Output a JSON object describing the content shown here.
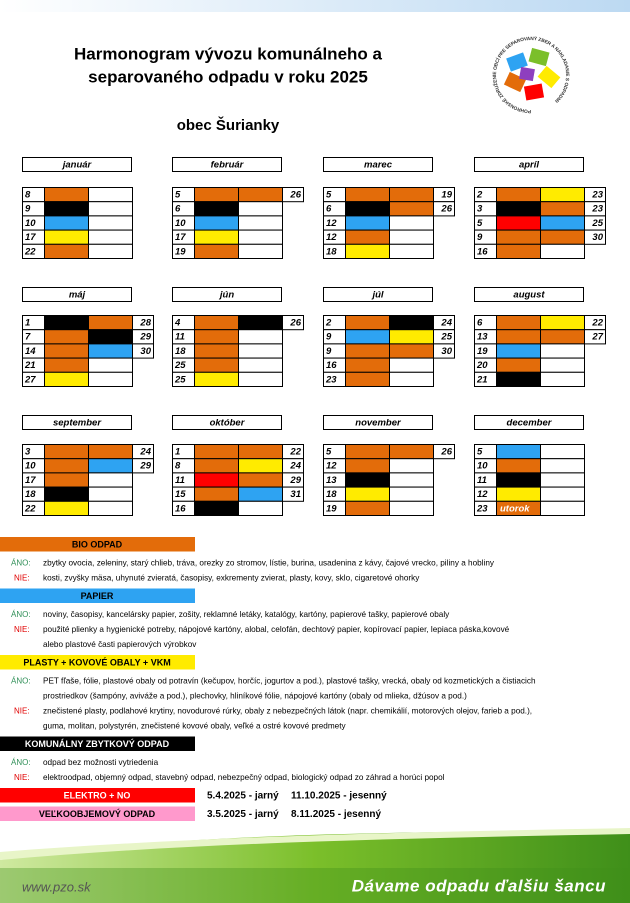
{
  "header": {
    "title_lines": [
      "Harmonogram vývozu komunálneho a",
      "separovaného odpadu v roku 2025"
    ],
    "subtitle": "obec Šurianky",
    "logo_text": "POHRONSKÉ ZDRUŽENIE OBCÍ PRE SEPAROVANÝ ZBER A NAKLADANIE S ODPADMI"
  },
  "months": [
    {
      "name": "január",
      "rows": [
        {
          "day": 8,
          "colors": [
            "#e36c0a",
            "#ffffff"
          ]
        },
        {
          "day": 9,
          "colors": [
            "#000000",
            "#ffffff"
          ]
        },
        {
          "day": 10,
          "colors": [
            "#2ea3f2",
            "#ffffff"
          ]
        },
        {
          "day": 17,
          "colors": [
            "#ffeb00",
            "#ffffff"
          ]
        },
        {
          "day": 22,
          "colors": [
            "#e36c0a",
            "#ffffff"
          ]
        }
      ]
    },
    {
      "name": "február",
      "rows": [
        {
          "day": 5,
          "colors": [
            "#e36c0a",
            "#e36c0a"
          ],
          "end": 26
        },
        {
          "day": 6,
          "colors": [
            "#000000",
            "#ffffff"
          ]
        },
        {
          "day": 10,
          "colors": [
            "#2ea3f2",
            "#ffffff"
          ]
        },
        {
          "day": 17,
          "colors": [
            "#ffeb00",
            "#ffffff"
          ]
        },
        {
          "day": 19,
          "colors": [
            "#e36c0a",
            "#ffffff"
          ]
        }
      ]
    },
    {
      "name": "marec",
      "rows": [
        {
          "day": 5,
          "colors": [
            "#e36c0a",
            "#e36c0a"
          ],
          "end": 19
        },
        {
          "day": 6,
          "colors": [
            "#000000",
            "#e36c0a"
          ],
          "end": 26
        },
        {
          "day": 12,
          "colors": [
            "#2ea3f2",
            "#ffffff"
          ]
        },
        {
          "day": 12,
          "colors": [
            "#e36c0a",
            "#ffffff"
          ]
        },
        {
          "day": 18,
          "colors": [
            "#ffeb00",
            "#ffffff"
          ]
        }
      ]
    },
    {
      "name": "apríl",
      "rows": [
        {
          "day": 2,
          "colors": [
            "#e36c0a",
            "#ffeb00"
          ],
          "end": 23
        },
        {
          "day": 3,
          "colors": [
            "#000000",
            "#e36c0a"
          ],
          "end": 23
        },
        {
          "day": 5,
          "colors": [
            "#ff0000",
            "#2ea3f2"
          ],
          "end": 25
        },
        {
          "day": 9,
          "colors": [
            "#e36c0a",
            "#e36c0a"
          ],
          "end": 30
        },
        {
          "day": 16,
          "colors": [
            "#e36c0a",
            "#ffffff"
          ]
        }
      ]
    },
    {
      "name": "máj",
      "rows": [
        {
          "day": 1,
          "colors": [
            "#000000",
            "#e36c0a"
          ],
          "end": 28
        },
        {
          "day": 7,
          "colors": [
            "#e36c0a",
            "#000000"
          ],
          "end": 29
        },
        {
          "day": 14,
          "colors": [
            "#e36c0a",
            "#2ea3f2"
          ],
          "end": 30
        },
        {
          "day": 21,
          "colors": [
            "#e36c0a",
            "#ffffff"
          ]
        },
        {
          "day": 27,
          "colors": [
            "#ffeb00",
            "#ffffff"
          ]
        }
      ]
    },
    {
      "name": "jún",
      "rows": [
        {
          "day": 4,
          "colors": [
            "#e36c0a",
            "#000000"
          ],
          "end": 26
        },
        {
          "day": 11,
          "colors": [
            "#e36c0a",
            "#ffffff"
          ]
        },
        {
          "day": 18,
          "colors": [
            "#e36c0a",
            "#ffffff"
          ]
        },
        {
          "day": 25,
          "colors": [
            "#e36c0a",
            "#ffffff"
          ]
        },
        {
          "day": 25,
          "colors": [
            "#ffeb00",
            "#ffffff"
          ]
        }
      ]
    },
    {
      "name": "júl",
      "rows": [
        {
          "day": 2,
          "colors": [
            "#e36c0a",
            "#000000"
          ],
          "end": 24
        },
        {
          "day": 9,
          "colors": [
            "#2ea3f2",
            "#ffeb00"
          ],
          "end": 25
        },
        {
          "day": 9,
          "colors": [
            "#e36c0a",
            "#e36c0a"
          ],
          "end": 30
        },
        {
          "day": 16,
          "colors": [
            "#e36c0a",
            "#ffffff"
          ]
        },
        {
          "day": 23,
          "colors": [
            "#e36c0a",
            "#ffffff"
          ]
        }
      ]
    },
    {
      "name": "august",
      "rows": [
        {
          "day": 6,
          "colors": [
            "#e36c0a",
            "#ffeb00"
          ],
          "end": 22
        },
        {
          "day": 13,
          "colors": [
            "#e36c0a",
            "#e36c0a"
          ],
          "end": 27
        },
        {
          "day": 19,
          "colors": [
            "#2ea3f2",
            "#ffffff"
          ]
        },
        {
          "day": 20,
          "colors": [
            "#e36c0a",
            "#ffffff"
          ]
        },
        {
          "day": 21,
          "colors": [
            "#000000",
            "#ffffff"
          ]
        }
      ]
    },
    {
      "name": "september",
      "rows": [
        {
          "day": 3,
          "colors": [
            "#e36c0a",
            "#e36c0a"
          ],
          "end": 24
        },
        {
          "day": 10,
          "colors": [
            "#e36c0a",
            "#2ea3f2"
          ],
          "end": 29
        },
        {
          "day": 17,
          "colors": [
            "#e36c0a",
            "#ffffff"
          ]
        },
        {
          "day": 18,
          "colors": [
            "#000000",
            "#ffffff"
          ]
        },
        {
          "day": 22,
          "colors": [
            "#ffeb00",
            "#ffffff"
          ]
        }
      ]
    },
    {
      "name": "október",
      "rows": [
        {
          "day": 1,
          "colors": [
            "#e36c0a",
            "#e36c0a"
          ],
          "end": 22
        },
        {
          "day": 8,
          "colors": [
            "#e36c0a",
            "#ffeb00"
          ],
          "end": 24
        },
        {
          "day": 11,
          "colors": [
            "#ff0000",
            "#e36c0a"
          ],
          "end": 29
        },
        {
          "day": 15,
          "colors": [
            "#e36c0a",
            "#2ea3f2"
          ],
          "end": 31
        },
        {
          "day": 16,
          "colors": [
            "#000000",
            "#ffffff"
          ]
        }
      ]
    },
    {
      "name": "november",
      "rows": [
        {
          "day": 5,
          "colors": [
            "#e36c0a",
            "#e36c0a"
          ],
          "end": 26
        },
        {
          "day": 12,
          "colors": [
            "#e36c0a",
            "#ffffff"
          ]
        },
        {
          "day": 13,
          "colors": [
            "#000000",
            "#ffffff"
          ]
        },
        {
          "day": 18,
          "colors": [
            "#ffeb00",
            "#ffffff"
          ]
        },
        {
          "day": 19,
          "colors": [
            "#e36c0a",
            "#ffffff"
          ]
        }
      ]
    },
    {
      "name": "december",
      "rows": [
        {
          "day": 5,
          "colors": [
            "#2ea3f2",
            "#ffffff"
          ]
        },
        {
          "day": 10,
          "colors": [
            "#e36c0a",
            "#ffffff"
          ]
        },
        {
          "day": 11,
          "colors": [
            "#000000",
            "#ffffff"
          ]
        },
        {
          "day": 12,
          "colors": [
            "#ffeb00",
            "#ffffff"
          ]
        },
        {
          "day": 23,
          "colors": [
            "#e36c0a",
            "#ffffff"
          ],
          "note": "utorok"
        }
      ]
    }
  ],
  "legend": [
    {
      "title": "BIO ODPAD",
      "color": "#e36c0a",
      "text_color": "#000000",
      "lines": [
        {
          "label": "ÁNO:",
          "text": [
            "zbytky ovocia, zeleniny, starý chlieb, tráva, orezky zo stromov, lístie, burina, usadenina z kávy, čajové vrecko, piliny a hobliny"
          ]
        },
        {
          "label": "NIE:",
          "text": [
            "kosti, zvyšky mäsa, uhynuté zvieratá, časopisy, exkrementy zvierat, plasty, kovy, sklo, cigaretové ohorky"
          ]
        }
      ]
    },
    {
      "title": "PAPIER",
      "color": "#2ea3f2",
      "text_color": "#000000",
      "lines": [
        {
          "label": "ÁNO:",
          "text": [
            "noviny, časopisy, kancelársky papier, zošity, reklamné letáky, katalógy, kartóny, papierové tašky, papierové obaly"
          ]
        },
        {
          "label": "NIE:",
          "text": [
            "použité plienky a hygienické potreby, nápojové kartóny, alobal, celofán, dechtový papier, kopírovací papier, lepiaca páska,kovové",
            "alebo plastové časti papierových výrobkov"
          ]
        }
      ]
    },
    {
      "title": "PLASTY + KOVOVÉ OBALY + VKM",
      "color": "#ffeb00",
      "text_color": "#000000",
      "lines": [
        {
          "label": "ÁNO:",
          "text": [
            "PET fľaše, fólie, plastové obaly od potravín (kečupov, horčíc, jogurtov a  pod.), plastové tašky, vrecká, obaly od kozmetických a čistiacich",
            "prostriedkov (šampóny, aviváže a pod.), plechovky, hliníkové fólie, nápojové kartóny (obaly od mlieka, džúsov a pod.)"
          ]
        },
        {
          "label": "NIE:",
          "text": [
            "znečistené plasty, podlahové krytiny, novodurové rúrky, obaly z nebezpečných látok (napr. chemikálií, motorových olejov, farieb a pod.),",
            "guma, molitan, polystyrén, znečistené kovové obaly, veľké a ostré kovové predmety"
          ]
        }
      ]
    },
    {
      "title": "KOMUNÁLNY ZBYTKOVÝ ODPAD",
      "color": "#000000",
      "text_color": "#ffffff",
      "lines": [
        {
          "label": "ÁNO:",
          "text": [
            "odpad bez možnosti vytriedenia"
          ]
        },
        {
          "label": "NIE:",
          "text": [
            "elektroodpad, objemný odpad, stavebný odpad, nebezpečný odpad, biologický odpad zo záhrad a horúci popol"
          ]
        }
      ]
    },
    {
      "title": "ELEKTRO + NO",
      "color": "#ff0000",
      "text_color": "#ffffff",
      "dates": [
        "5.4.2025 - jarný",
        "11.10.2025 - jesenný"
      ]
    },
    {
      "title": "VEĽKOOBJEMOVÝ ODPAD",
      "color": "#ff99cc",
      "text_color": "#000000",
      "dates": [
        "3.5.2025 - jarný",
        "8.11.2025 - jesenný"
      ]
    }
  ],
  "footer": {
    "url": "www.pzo.sk",
    "slogan": "Dávame odpadu ďalšiu šancu"
  }
}
